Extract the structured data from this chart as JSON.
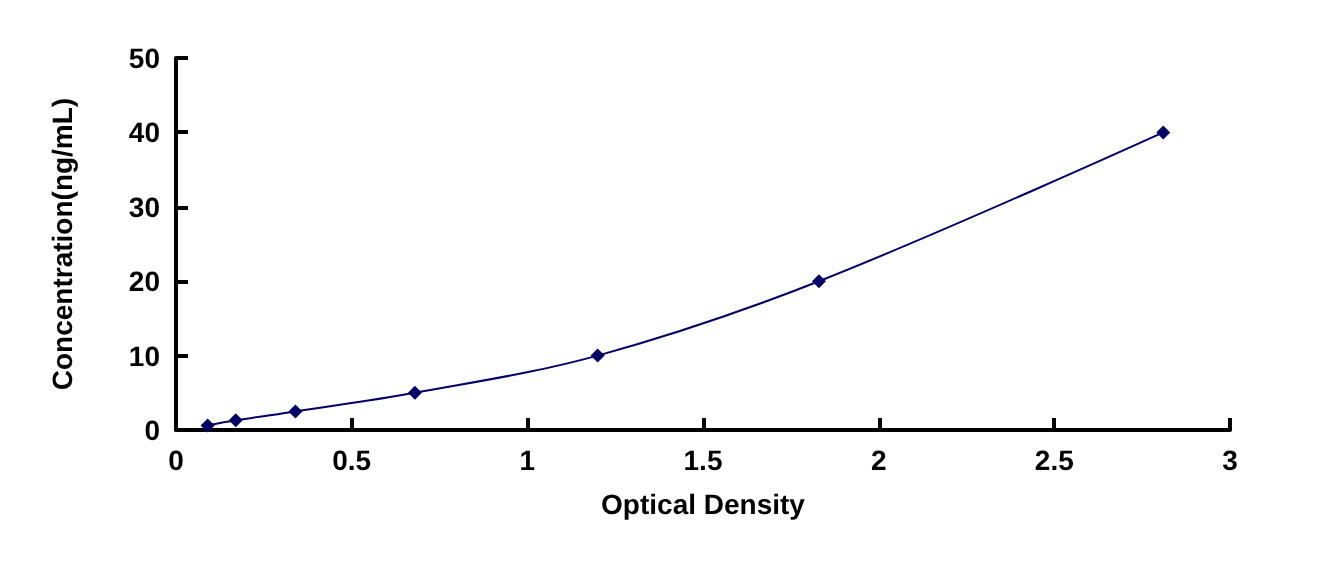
{
  "chart_data": {
    "type": "line",
    "xlabel": "Optical Density",
    "ylabel": "Concentration(ng/mL)",
    "x": [
      0.09,
      0.17,
      0.34,
      0.68,
      1.2,
      1.83,
      2.81
    ],
    "series": [
      {
        "color": "#000066",
        "values": [
          0.6,
          1.3,
          2.5,
          5,
          10,
          20,
          40
        ]
      }
    ],
    "xlim": [
      0,
      3
    ],
    "xticks": [
      0,
      0.5,
      1,
      1.5,
      2,
      2.5,
      3
    ],
    "ylim": [
      0,
      50
    ],
    "yticks": [
      0,
      10,
      20,
      30,
      40,
      50
    ],
    "grid": false,
    "marker": "diamond",
    "line_style": "solid"
  }
}
